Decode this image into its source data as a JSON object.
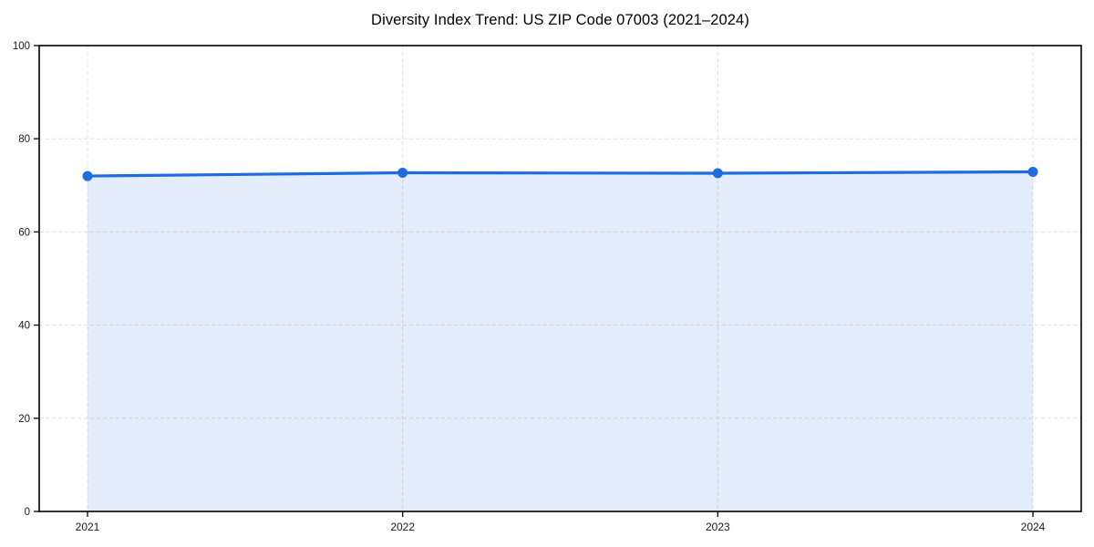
{
  "chart_data": {
    "type": "area",
    "title": "Diversity Index Trend: US ZIP Code 07003 (2021–2024)",
    "categories": [
      "2021",
      "2022",
      "2023",
      "2024"
    ],
    "series": [
      {
        "name": "Diversity Index",
        "values": [
          72.0,
          72.7,
          72.6,
          72.9
        ]
      }
    ],
    "xlabel": "",
    "ylabel": "",
    "ylim": [
      0,
      100
    ],
    "yticks": [
      0,
      20,
      40,
      60,
      80,
      100
    ],
    "grid": true,
    "grid_style": "dashed",
    "legend": "none",
    "colors": {
      "line": "#1f6be0",
      "marker": "#1f6be0",
      "fill": "rgba(31, 107, 224, 0.12)",
      "grid": "#e1e1e1",
      "spine": "#000000",
      "tick": "#000000",
      "tick_label": "#1a1a1a",
      "title": "#000000",
      "background": "#ffffff"
    }
  }
}
